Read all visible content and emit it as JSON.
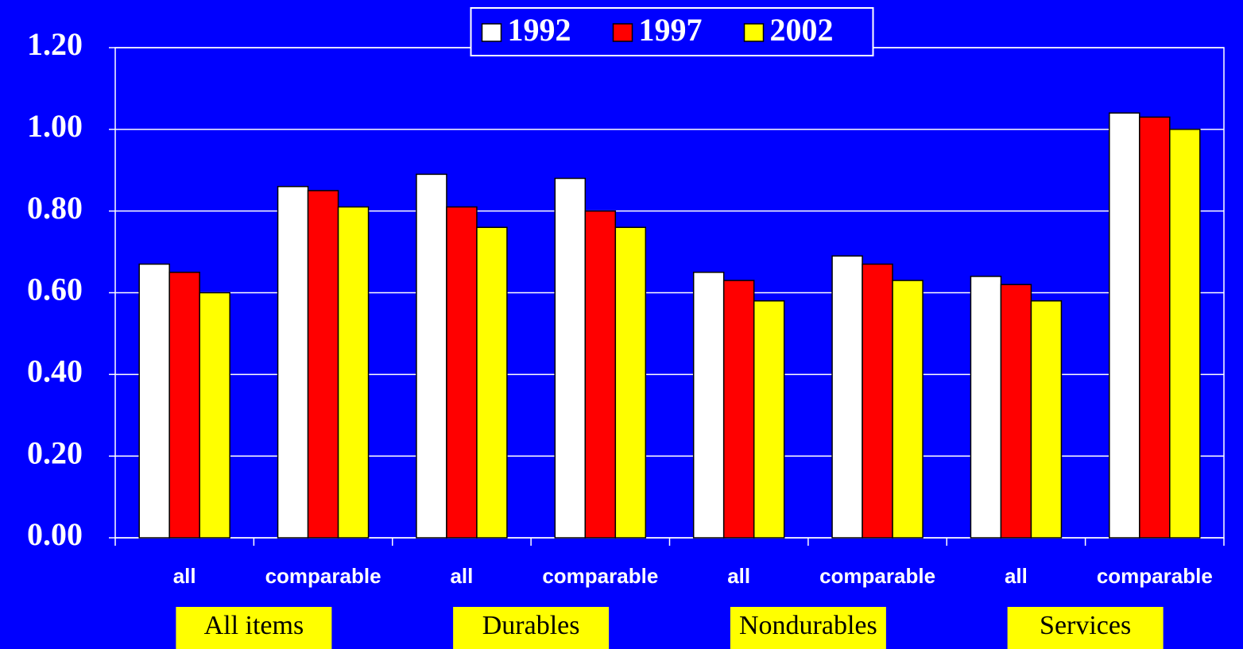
{
  "chart_data": {
    "type": "bar",
    "categories": [
      "all",
      "comparable",
      "all",
      "comparable",
      "all",
      "comparable",
      "all",
      "comparable"
    ],
    "groups": [
      "All items",
      "Durables",
      "Nondurables",
      "Services"
    ],
    "series": [
      {
        "name": "1992",
        "color": "#ffffff",
        "values": [
          0.67,
          0.86,
          0.89,
          0.88,
          0.65,
          0.69,
          0.64,
          1.04
        ]
      },
      {
        "name": "1997",
        "color": "#ff0000",
        "values": [
          0.65,
          0.85,
          0.81,
          0.8,
          0.63,
          0.67,
          0.62,
          1.03
        ]
      },
      {
        "name": "2002",
        "color": "#ffff00",
        "values": [
          0.6,
          0.81,
          0.76,
          0.76,
          0.58,
          0.63,
          0.58,
          1.0
        ]
      }
    ],
    "ylim": [
      0,
      1.2
    ],
    "yticks": [
      {
        "value": 0,
        "label": "0.00"
      },
      {
        "value": 0.2,
        "label": "0.20"
      },
      {
        "value": 0.4,
        "label": "0.40"
      },
      {
        "value": 0.6,
        "label": "0.60"
      },
      {
        "value": 0.8,
        "label": "0.80"
      },
      {
        "value": 1,
        "label": "1.00"
      },
      {
        "value": 1.2,
        "label": "1.20"
      }
    ],
    "grid": true,
    "legend": "top"
  }
}
